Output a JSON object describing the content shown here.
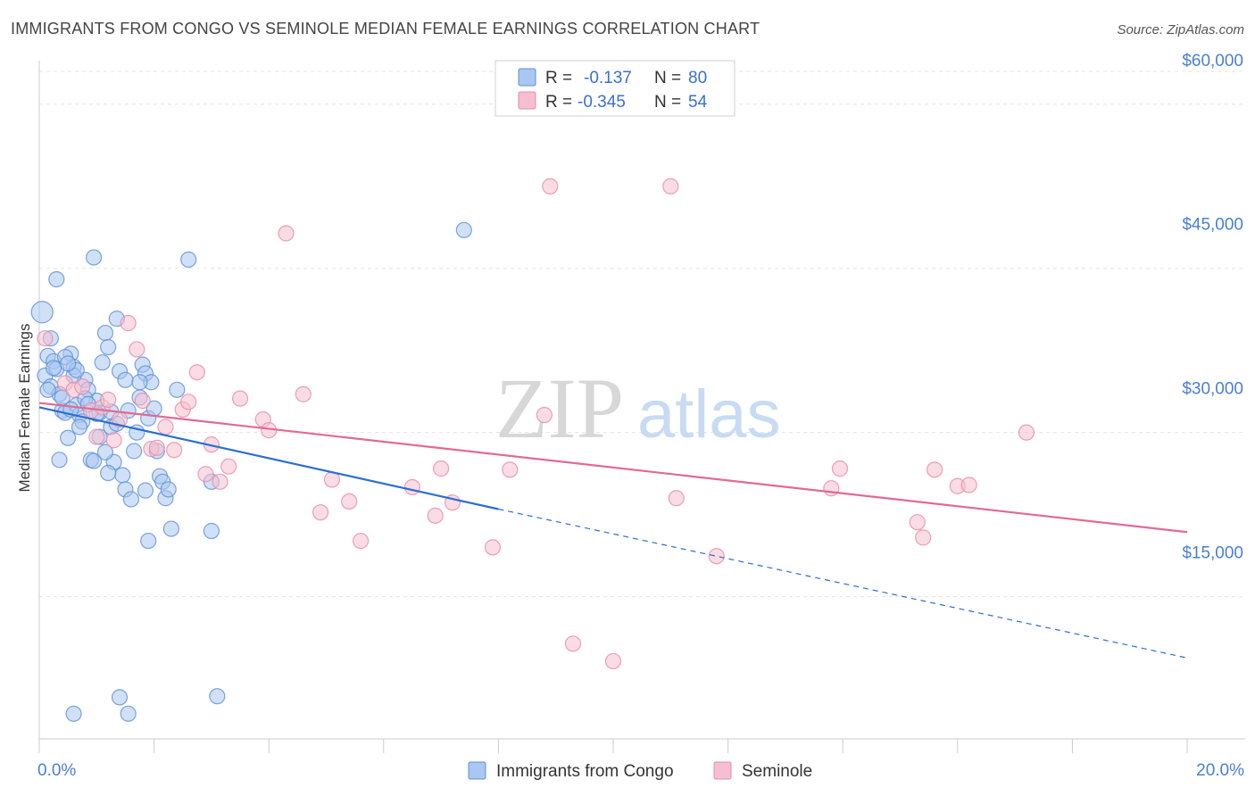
{
  "header": {
    "title": "IMMIGRANTS FROM CONGO VS SEMINOLE MEDIAN FEMALE EARNINGS CORRELATION CHART",
    "source": "Source: ZipAtlas.com"
  },
  "watermark": {
    "zip": "ZIP",
    "atlas": "atlas"
  },
  "legend": {
    "r_label": "R =",
    "n_label": "N =",
    "entries": [
      {
        "r": "-0.137",
        "n": "80"
      },
      {
        "r": "-0.345",
        "n": "54"
      }
    ]
  },
  "colors": {
    "congo_fill": "#a9c7f0",
    "congo_stroke": "#5b8fd8",
    "congo_line": "#2b6fd1",
    "seminole_fill": "#f5bfd0",
    "seminole_stroke": "#e68aa8",
    "seminole_line": "#e06a95",
    "grid": "#e3e3e3",
    "tick_label": "#4a7fd4"
  },
  "chart_data": {
    "type": "scatter",
    "xlabel": "",
    "ylabel": "Median Female Earnings",
    "xlim": [
      0,
      20
    ],
    "ylim": [
      2000,
      63000
    ],
    "x_tick_labels": [
      "0.0%",
      "20.0%"
    ],
    "y_ticks": [
      {
        "value": 15000,
        "label": "$15,000"
      },
      {
        "value": 30000,
        "label": "$30,000"
      },
      {
        "value": 45000,
        "label": "$45,000"
      },
      {
        "value": 60000,
        "label": "$60,000"
      }
    ],
    "grid": true,
    "legend_position": "top-center",
    "series": [
      {
        "name": "Immigrants from Congo",
        "trend": {
          "x_start": 0,
          "y_start": 32300,
          "x_solid_end": 8,
          "y_solid_end": 23000,
          "x_dashed_end": 20,
          "y_dashed_end": 9400
        },
        "points": [
          [
            0.05,
            41000
          ],
          [
            0.15,
            37000
          ],
          [
            0.1,
            35200
          ],
          [
            0.2,
            34200
          ],
          [
            0.25,
            36500
          ],
          [
            0.3,
            35800
          ],
          [
            0.35,
            33500
          ],
          [
            0.4,
            32000
          ],
          [
            0.45,
            31800
          ],
          [
            0.5,
            29500
          ],
          [
            0.55,
            37200
          ],
          [
            0.6,
            36000
          ],
          [
            0.65,
            32500
          ],
          [
            0.7,
            31600
          ],
          [
            0.75,
            31000
          ],
          [
            0.8,
            34800
          ],
          [
            0.85,
            33900
          ],
          [
            0.9,
            27500
          ],
          [
            0.95,
            27400
          ],
          [
            1.0,
            32900
          ],
          [
            1.05,
            31800
          ],
          [
            1.1,
            36400
          ],
          [
            1.15,
            39100
          ],
          [
            1.2,
            37800
          ],
          [
            1.25,
            30500
          ],
          [
            1.3,
            27300
          ],
          [
            1.35,
            40400
          ],
          [
            1.4,
            35600
          ],
          [
            1.45,
            26100
          ],
          [
            1.5,
            24800
          ],
          [
            1.55,
            32000
          ],
          [
            1.6,
            23900
          ],
          [
            1.65,
            28300
          ],
          [
            1.7,
            30000
          ],
          [
            1.75,
            33200
          ],
          [
            1.8,
            36200
          ],
          [
            1.85,
            35400
          ],
          [
            1.9,
            31300
          ],
          [
            1.95,
            34600
          ],
          [
            2.0,
            32200
          ],
          [
            2.05,
            28300
          ],
          [
            2.1,
            26000
          ],
          [
            2.15,
            25500
          ],
          [
            2.2,
            24000
          ],
          [
            2.25,
            24800
          ],
          [
            2.3,
            21200
          ],
          [
            0.3,
            44000
          ],
          [
            0.95,
            46000
          ],
          [
            2.6,
            45800
          ],
          [
            0.2,
            38600
          ],
          [
            0.45,
            36900
          ],
          [
            0.6,
            35200
          ],
          [
            0.8,
            33100
          ],
          [
            1.0,
            31700
          ],
          [
            0.35,
            27500
          ],
          [
            0.7,
            30500
          ],
          [
            1.5,
            34800
          ],
          [
            1.2,
            26300
          ],
          [
            2.4,
            33900
          ],
          [
            1.9,
            20100
          ],
          [
            3.0,
            21000
          ],
          [
            3.0,
            25500
          ],
          [
            7.4,
            48500
          ],
          [
            0.6,
            4300
          ],
          [
            1.4,
            5800
          ],
          [
            1.55,
            4300
          ],
          [
            3.1,
            5900
          ],
          [
            0.25,
            35900
          ],
          [
            0.55,
            32100
          ],
          [
            0.85,
            32600
          ],
          [
            1.15,
            28200
          ],
          [
            1.35,
            30800
          ],
          [
            0.4,
            33200
          ],
          [
            1.05,
            29600
          ],
          [
            1.75,
            34600
          ],
          [
            0.65,
            35700
          ],
          [
            0.15,
            33900
          ],
          [
            0.5,
            36300
          ],
          [
            1.25,
            31900
          ],
          [
            1.85,
            24700
          ]
        ]
      },
      {
        "name": "Seminole",
        "trend": {
          "x_start": 0,
          "y_start": 32700,
          "x_end": 20,
          "y_end": 20900
        },
        "points": [
          [
            0.1,
            38600
          ],
          [
            0.45,
            34500
          ],
          [
            0.6,
            33900
          ],
          [
            0.75,
            34200
          ],
          [
            0.9,
            32000
          ],
          [
            1.0,
            29600
          ],
          [
            1.1,
            32300
          ],
          [
            1.2,
            33000
          ],
          [
            1.3,
            29300
          ],
          [
            1.4,
            31200
          ],
          [
            1.55,
            40000
          ],
          [
            1.7,
            37600
          ],
          [
            1.8,
            32900
          ],
          [
            1.95,
            28500
          ],
          [
            2.05,
            28600
          ],
          [
            2.2,
            30500
          ],
          [
            2.35,
            28400
          ],
          [
            2.5,
            32100
          ],
          [
            2.6,
            32800
          ],
          [
            2.75,
            35500
          ],
          [
            2.9,
            26200
          ],
          [
            3.0,
            28900
          ],
          [
            3.15,
            25500
          ],
          [
            3.3,
            26900
          ],
          [
            3.5,
            33100
          ],
          [
            3.9,
            31200
          ],
          [
            4.0,
            30200
          ],
          [
            4.3,
            48200
          ],
          [
            4.6,
            33500
          ],
          [
            4.9,
            22700
          ],
          [
            5.1,
            25700
          ],
          [
            5.4,
            23700
          ],
          [
            5.6,
            20100
          ],
          [
            6.5,
            25000
          ],
          [
            6.9,
            22400
          ],
          [
            7.0,
            26700
          ],
          [
            7.2,
            23600
          ],
          [
            7.9,
            19500
          ],
          [
            8.2,
            26600
          ],
          [
            8.8,
            31600
          ],
          [
            8.9,
            52500
          ],
          [
            9.3,
            10700
          ],
          [
            10.0,
            9100
          ],
          [
            11.0,
            52500
          ],
          [
            11.1,
            24000
          ],
          [
            11.8,
            18700
          ],
          [
            13.8,
            24900
          ],
          [
            13.95,
            26700
          ],
          [
            15.3,
            21800
          ],
          [
            15.4,
            20400
          ],
          [
            15.6,
            26600
          ],
          [
            16.0,
            25100
          ],
          [
            16.2,
            25200
          ],
          [
            17.2,
            30000
          ]
        ]
      }
    ]
  },
  "bottom_legend": [
    {
      "label": "Immigrants from Congo"
    },
    {
      "label": "Seminole"
    }
  ]
}
